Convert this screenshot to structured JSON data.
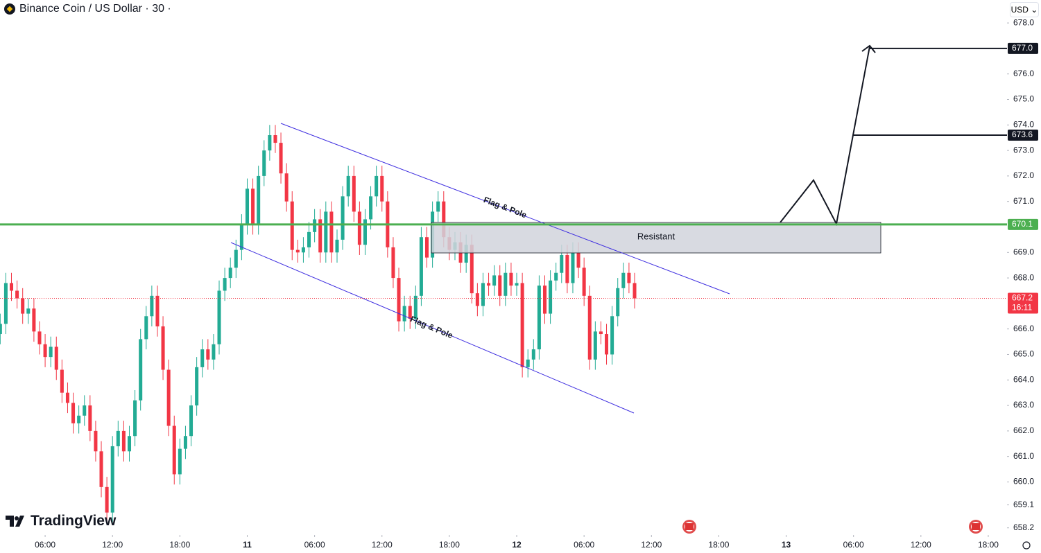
{
  "chart_data": {
    "type": "candlestick",
    "title": "Binance Coin / US Dollar · 30 ·",
    "currency_selector": "USD",
    "logo": "TradingView",
    "x": [
      2,
      2.5,
      3,
      3.5,
      4,
      4.5,
      5,
      5.5,
      6,
      6.5,
      7,
      7.5,
      8,
      8.5,
      9,
      9.5,
      10,
      10.5,
      11,
      11.5,
      12,
      12.5,
      13,
      13.5,
      14,
      14.5,
      15,
      15.5,
      16,
      16.5,
      17,
      17.5,
      18,
      18.5,
      19,
      19.5,
      20,
      20.5,
      21,
      21.5,
      22,
      22.5,
      23,
      23.5,
      24,
      24.5,
      25,
      25.5,
      26,
      26.5,
      27,
      27.5,
      28,
      28.5,
      29,
      29.5,
      30,
      30.5,
      31,
      31.5,
      32,
      32.5,
      33,
      33.5,
      34,
      34.5,
      35,
      35.5,
      36,
      36.5,
      37,
      37.5,
      38,
      38.5,
      39,
      39.5,
      40,
      40.5,
      41,
      41.5,
      42,
      42.5,
      43,
      43.5,
      44,
      44.5,
      45,
      45.5,
      46,
      46.5,
      47,
      47.5,
      48,
      48.5,
      49,
      49.5,
      50,
      50.5,
      51,
      51.5,
      52,
      52.5,
      53,
      53.5,
      54,
      54.5,
      55,
      55.5,
      56,
      56.5,
      57,
      57.5,
      58,
      58.5
    ],
    "open": [
      665.8,
      666.2,
      667.8,
      667.5,
      667.2,
      666.6,
      666.8,
      665.9,
      665.4,
      664.9,
      665.3,
      664.4,
      663.5,
      663.1,
      662.3,
      662.6,
      663.0,
      662.0,
      661.2,
      659.8,
      658.8,
      661.4,
      662.0,
      661.2,
      661.8,
      663.2,
      665.6,
      666.5,
      667.3,
      666.1,
      664.4,
      662.2,
      660.3,
      661.3,
      661.8,
      663.0,
      664.5,
      665.2,
      664.8,
      665.4,
      667.5,
      668.0,
      668.4,
      669.1,
      670.1,
      671.5,
      670.1,
      672.0,
      673.0,
      673.6,
      673.3,
      672.1,
      671.0,
      669.1,
      669.0,
      669.2,
      669.8,
      670.3,
      669.0,
      670.6,
      669.0,
      669.5,
      671.2,
      672.0,
      670.6,
      669.3,
      670.3,
      671.2,
      672.0,
      671.0,
      669.2,
      668.0,
      666.3,
      666.9,
      666.4,
      667.3,
      669.6,
      668.8,
      670.6,
      671.0,
      669.6,
      669.1,
      669.4,
      668.6,
      669.3,
      667.4,
      666.9,
      667.8,
      667.7,
      668.1,
      667.3,
      668.2,
      667.7,
      667.8,
      664.5,
      664.8,
      665.2,
      667.7,
      666.6,
      667.9,
      668.2,
      668.9,
      667.8,
      669.0,
      668.4,
      667.3,
      664.8,
      665.9,
      665.8,
      665.0,
      666.5,
      667.6,
      668.2,
      667.8
    ],
    "high": [
      666.6,
      668.2,
      668.2,
      667.9,
      667.6,
      667.2,
      667.2,
      666.3,
      665.8,
      665.7,
      665.7,
      664.8,
      663.9,
      663.5,
      663.0,
      663.4,
      663.4,
      662.4,
      661.6,
      660.2,
      661.8,
      662.4,
      662.4,
      662.2,
      663.6,
      666.0,
      666.9,
      667.7,
      667.7,
      666.5,
      664.8,
      662.6,
      661.7,
      662.2,
      663.4,
      664.9,
      665.6,
      665.6,
      665.8,
      667.9,
      668.4,
      668.8,
      669.5,
      670.5,
      671.9,
      671.9,
      672.4,
      673.4,
      674.0,
      674.0,
      673.7,
      672.5,
      671.4,
      669.5,
      669.6,
      670.2,
      670.7,
      670.7,
      671.0,
      671.0,
      669.9,
      671.6,
      672.4,
      672.4,
      671.0,
      670.7,
      671.6,
      672.4,
      672.4,
      671.4,
      669.6,
      668.4,
      667.3,
      667.3,
      667.7,
      670.0,
      670.0,
      671.0,
      671.4,
      671.4,
      670.0,
      669.8,
      669.8,
      669.7,
      669.7,
      667.8,
      668.2,
      668.2,
      668.5,
      668.5,
      668.6,
      668.6,
      668.2,
      668.2,
      665.2,
      665.6,
      668.1,
      668.1,
      668.3,
      668.6,
      669.3,
      669.3,
      669.4,
      669.4,
      668.8,
      667.7,
      666.3,
      666.3,
      666.2,
      666.9,
      668.0,
      668.6,
      668.6,
      668.2
    ],
    "low": [
      665.4,
      665.8,
      667.1,
      666.8,
      666.2,
      666.2,
      665.5,
      665.0,
      664.5,
      664.5,
      664.0,
      663.1,
      662.7,
      661.9,
      661.9,
      662.2,
      661.6,
      660.8,
      659.4,
      658.4,
      658.4,
      661.0,
      660.8,
      660.8,
      661.4,
      662.8,
      665.2,
      666.1,
      665.7,
      664.0,
      661.8,
      659.9,
      659.9,
      660.9,
      661.4,
      662.6,
      664.1,
      664.4,
      664.4,
      665.0,
      667.1,
      667.6,
      668.0,
      668.7,
      669.7,
      669.7,
      669.7,
      671.6,
      672.6,
      672.9,
      671.7,
      670.6,
      668.7,
      668.6,
      668.6,
      668.8,
      669.4,
      668.6,
      668.6,
      668.6,
      668.6,
      669.1,
      670.8,
      670.2,
      668.9,
      668.9,
      669.9,
      670.8,
      670.6,
      668.8,
      667.6,
      665.9,
      665.9,
      666.0,
      666.0,
      666.9,
      668.4,
      668.4,
      670.2,
      669.2,
      668.7,
      668.7,
      668.2,
      668.2,
      667.0,
      666.5,
      666.5,
      667.3,
      667.3,
      666.9,
      666.9,
      667.3,
      667.3,
      664.1,
      664.1,
      664.4,
      664.8,
      666.2,
      666.2,
      667.5,
      667.8,
      667.4,
      667.4,
      668.0,
      666.9,
      664.4,
      664.4,
      665.4,
      664.6,
      664.6,
      666.1,
      667.2,
      667.4,
      666.8
    ],
    "close": [
      666.2,
      667.8,
      667.5,
      667.2,
      666.6,
      666.8,
      665.9,
      665.4,
      664.9,
      665.3,
      664.4,
      663.5,
      663.1,
      662.3,
      662.6,
      663.0,
      662.0,
      661.2,
      659.8,
      658.8,
      661.4,
      662.0,
      661.2,
      661.8,
      663.2,
      665.6,
      666.5,
      667.3,
      666.1,
      664.4,
      662.2,
      660.3,
      661.3,
      661.8,
      663.0,
      664.5,
      665.2,
      664.8,
      665.4,
      667.5,
      668.0,
      668.4,
      669.1,
      670.1,
      671.5,
      670.1,
      672.0,
      673.0,
      673.6,
      673.3,
      672.1,
      671.0,
      669.1,
      669.0,
      669.2,
      669.8,
      670.3,
      669.0,
      670.6,
      669.0,
      669.5,
      671.2,
      672.0,
      670.6,
      669.3,
      670.3,
      671.2,
      672.0,
      671.0,
      669.2,
      668.0,
      666.3,
      666.9,
      666.4,
      667.3,
      669.6,
      668.8,
      670.6,
      671.0,
      669.6,
      669.1,
      669.4,
      668.6,
      669.3,
      667.4,
      666.9,
      667.8,
      667.7,
      668.1,
      667.3,
      668.2,
      667.7,
      667.8,
      664.5,
      664.8,
      665.2,
      667.7,
      666.6,
      667.9,
      668.2,
      668.9,
      667.8,
      669.0,
      668.4,
      667.3,
      664.8,
      665.9,
      665.8,
      665.0,
      666.5,
      667.6,
      668.2,
      667.8,
      667.2
    ],
    "up_color": "#22ab94",
    "down_color": "#f23645",
    "xlim": [
      1.98,
      91.67
    ],
    "ylim": [
      657.92,
      678.9
    ],
    "xticks": [
      {
        "value": 6,
        "label": "06:00"
      },
      {
        "value": 12,
        "label": "12:00"
      },
      {
        "value": 18,
        "label": "18:00"
      },
      {
        "value": 24,
        "label": "11"
      },
      {
        "value": 30,
        "label": "06:00"
      },
      {
        "value": 36,
        "label": "12:00"
      },
      {
        "value": 42,
        "label": "18:00"
      },
      {
        "value": 48,
        "label": "12"
      },
      {
        "value": 54,
        "label": "06:00"
      },
      {
        "value": 60,
        "label": "12:00"
      },
      {
        "value": 66,
        "label": "18:00"
      },
      {
        "value": 72,
        "label": "13"
      },
      {
        "value": 78,
        "label": "06:00"
      },
      {
        "value": 84,
        "label": "12:00"
      },
      {
        "value": 90,
        "label": "18:00"
      }
    ],
    "yticks": [
      {
        "value": 678,
        "label": "678.0"
      },
      {
        "value": 676,
        "label": "676.0"
      },
      {
        "value": 675,
        "label": "675.0"
      },
      {
        "value": 674,
        "label": "674.0"
      },
      {
        "value": 673,
        "label": "673.0"
      },
      {
        "value": 672,
        "label": "672.0"
      },
      {
        "value": 671,
        "label": "671.0"
      },
      {
        "value": 669,
        "label": "669.0"
      },
      {
        "value": 668,
        "label": "668.0"
      },
      {
        "value": 666,
        "label": "666.0"
      },
      {
        "value": 665,
        "label": "665.0"
      },
      {
        "value": 664,
        "label": "664.0"
      },
      {
        "value": 663,
        "label": "663.0"
      },
      {
        "value": 662,
        "label": "662.0"
      },
      {
        "value": 661,
        "label": "661.0"
      },
      {
        "value": 660,
        "label": "660.0"
      },
      659.1,
      658.2
    ],
    "target_levels": [
      {
        "value": 677,
        "label": "677.0"
      },
      673.6
    ],
    "support_level": 670.1,
    "support_color": "#4caf50",
    "last_price": 667.2,
    "countdown": "16:11",
    "zone_label": "Resistant",
    "annotations": [
      "Flag & Pole",
      "Flag & Pole"
    ]
  }
}
